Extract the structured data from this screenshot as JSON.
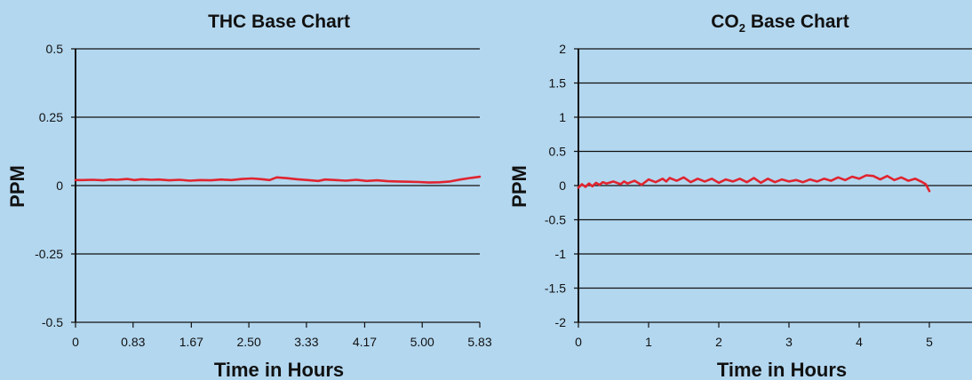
{
  "chart_data": [
    {
      "type": "line",
      "title": "THC Base Chart",
      "xlabel": "Time in Hours",
      "ylabel": "PPM",
      "xlim": [
        0,
        5.83
      ],
      "ylim": [
        -0.5,
        0.5
      ],
      "xtick_labels": [
        "0",
        "0.83",
        "1.67",
        "2.50",
        "3.33",
        "4.17",
        "5.00",
        "5.83"
      ],
      "ytick_labels": [
        "0.5",
        "0.25",
        "0",
        "-0.25",
        "-0.5"
      ],
      "ytick_values": [
        0.5,
        0.25,
        0,
        -0.25,
        -0.5
      ],
      "grid": "horizontal",
      "line_color": "#e0242f",
      "series": [
        {
          "x": [
            0,
            0.1,
            0.25,
            0.4,
            0.5,
            0.6,
            0.75,
            0.85,
            0.95,
            1.1,
            1.2,
            1.35,
            1.5,
            1.65,
            1.8,
            1.95,
            2.1,
            2.25,
            2.4,
            2.55,
            2.7,
            2.8,
            2.9,
            3.05,
            3.2,
            3.35,
            3.5,
            3.6,
            3.75,
            3.9,
            4.05,
            4.2,
            4.35,
            4.5,
            4.65,
            4.8,
            4.95,
            5.1,
            5.25,
            5.4,
            5.55,
            5.7,
            5.83
          ],
          "y": [
            0.02,
            0.02,
            0.021,
            0.019,
            0.022,
            0.021,
            0.024,
            0.02,
            0.023,
            0.021,
            0.022,
            0.019,
            0.021,
            0.018,
            0.02,
            0.019,
            0.022,
            0.02,
            0.024,
            0.026,
            0.023,
            0.02,
            0.03,
            0.027,
            0.023,
            0.02,
            0.017,
            0.022,
            0.02,
            0.018,
            0.021,
            0.017,
            0.019,
            0.016,
            0.015,
            0.014,
            0.013,
            0.011,
            0.012,
            0.015,
            0.022,
            0.028,
            0.032
          ]
        }
      ]
    },
    {
      "type": "line",
      "title": "CO",
      "title_subscript": "2",
      "title_rest": " Base Chart",
      "xlabel": "Time in Hours",
      "ylabel": "PPM",
      "xlim": [
        0,
        5.6
      ],
      "ylim": [
        -2,
        2
      ],
      "xtick_labels": [
        "0",
        "1",
        "2",
        "3",
        "4",
        "5"
      ],
      "xtick_values": [
        0,
        1,
        2,
        3,
        4,
        5
      ],
      "ytick_labels": [
        "2",
        "1.5",
        "1",
        "0.5",
        "0",
        "-0.5",
        "-1",
        "-1.5",
        "-2"
      ],
      "ytick_values": [
        2,
        1.5,
        1,
        0.5,
        0,
        -0.5,
        -1,
        -1.5,
        -2
      ],
      "grid": "horizontal",
      "line_color": "#e0242f",
      "series": [
        {
          "x": [
            0,
            0.05,
            0.1,
            0.15,
            0.2,
            0.25,
            0.3,
            0.35,
            0.4,
            0.5,
            0.6,
            0.65,
            0.7,
            0.8,
            0.9,
            1.0,
            1.1,
            1.2,
            1.25,
            1.3,
            1.4,
            1.5,
            1.6,
            1.7,
            1.8,
            1.9,
            2.0,
            2.1,
            2.2,
            2.3,
            2.4,
            2.5,
            2.6,
            2.7,
            2.8,
            2.9,
            3.0,
            3.1,
            3.2,
            3.3,
            3.4,
            3.5,
            3.6,
            3.7,
            3.8,
            3.9,
            4.0,
            4.1,
            4.2,
            4.3,
            4.4,
            4.5,
            4.6,
            4.7,
            4.8,
            4.9,
            4.95,
            5.0
          ],
          "y": [
            -0.03,
            0.02,
            -0.02,
            0.03,
            -0.01,
            0.04,
            0.01,
            0.05,
            0.03,
            0.06,
            0.02,
            0.06,
            0.03,
            0.07,
            0.01,
            0.09,
            0.05,
            0.1,
            0.06,
            0.11,
            0.07,
            0.12,
            0.05,
            0.1,
            0.06,
            0.1,
            0.04,
            0.09,
            0.06,
            0.1,
            0.05,
            0.11,
            0.04,
            0.1,
            0.05,
            0.09,
            0.06,
            0.08,
            0.05,
            0.09,
            0.06,
            0.1,
            0.07,
            0.12,
            0.08,
            0.13,
            0.1,
            0.15,
            0.14,
            0.09,
            0.14,
            0.08,
            0.12,
            0.07,
            0.1,
            0.05,
            0.02,
            -0.08
          ]
        }
      ]
    }
  ]
}
